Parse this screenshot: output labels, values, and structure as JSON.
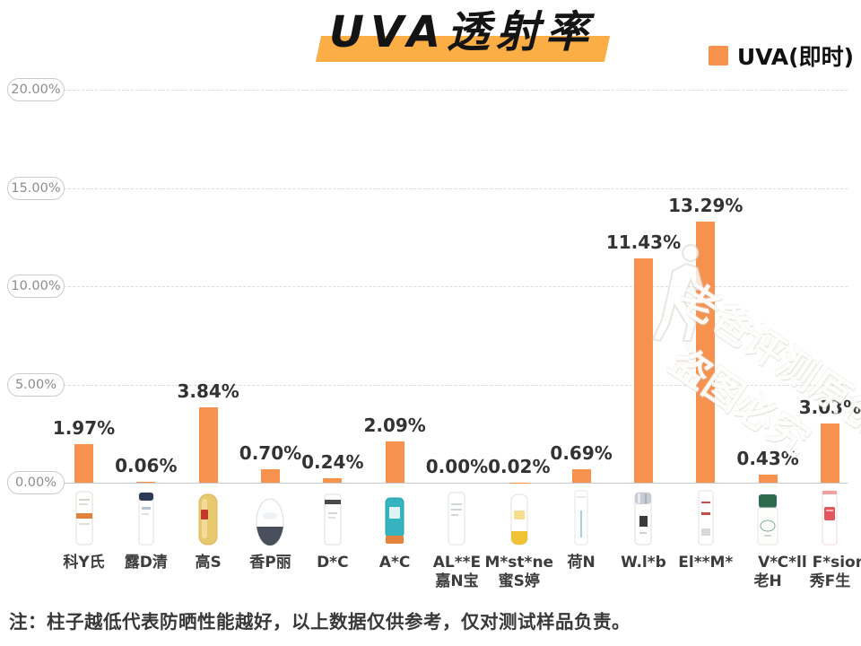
{
  "header": {
    "title": "UVA透射率",
    "title_highlight_color": "#FBAE45",
    "legend": {
      "label": "UVA(即时)",
      "swatch_color": "#F6914E"
    }
  },
  "watermark": {
    "line1": "老爸评测原创",
    "line2": "盗图必究"
  },
  "note": "注：柱子越低代表防晒性能越好，以上数据仅供参考，仅对测试样品负责。",
  "chart_data": {
    "type": "bar",
    "title": "UVA透射率",
    "legend_entries": [
      "UVA(即时)"
    ],
    "legend_position": "top-right",
    "grid": "horizontal-dashed",
    "bar_color": "#F6914E",
    "ylim": [
      0,
      20
    ],
    "yticks": [
      {
        "label": "20.00%",
        "value": 20
      },
      {
        "label": "15.00%",
        "value": 15
      },
      {
        "label": "10.00%",
        "value": 10
      },
      {
        "label": "5.00%",
        "value": 5
      },
      {
        "label": "0.00%",
        "value": 0
      }
    ],
    "categories": [
      "科Y氏",
      "露D清",
      "高S",
      "香P丽",
      "D*C",
      "A*C",
      "AL**E 嘉N宝",
      "M*st*ne 蜜S婷",
      "荷N",
      "W.l*b",
      "El**M*",
      "V* 老H",
      "C*ll F*sion C 秀F生"
    ],
    "values": [
      1.97,
      0.06,
      3.84,
      0.7,
      0.24,
      2.09,
      0.0,
      0.02,
      0.69,
      11.43,
      13.29,
      0.43,
      3.03
    ],
    "products": [
      {
        "label_lines": [
          "科Y氏"
        ],
        "value": 1.97,
        "value_label": "1.97%",
        "icon": "tube-orange-band-photo",
        "style": "tube_band",
        "colors": [
          "#ffffff",
          "#E0813C",
          "#E2DCD2"
        ]
      },
      {
        "label_lines": [
          "露D清"
        ],
        "value": 0.06,
        "value_label": "0.06%",
        "icon": "tube-dark-cap-photo",
        "style": "tube_capdark",
        "colors": [
          "#ffffff",
          "#2D3A55",
          "#dfe2e8"
        ]
      },
      {
        "label_lines": [
          "高S"
        ],
        "value": 3.84,
        "value_label": "3.84%",
        "icon": "gold-bottle-photo",
        "style": "bottle_gold",
        "colors": [
          "#E9C96F",
          "#C0392B",
          "#D9B45A"
        ]
      },
      {
        "label_lines": [
          "香P丽"
        ],
        "value": 0.7,
        "value_label": "0.70%",
        "icon": "egg-rollon-photo",
        "style": "egg",
        "colors": [
          "#ffffff",
          "#49505C",
          "#d8dce0"
        ]
      },
      {
        "label_lines": [
          "D*C"
        ],
        "value": 0.24,
        "value_label": "0.24%",
        "icon": "rect-bottle-photo",
        "style": "bottle_rect",
        "colors": [
          "#ffffff",
          "#4a4a4a",
          "#dddddd"
        ]
      },
      {
        "label_lines": [
          "A*C"
        ],
        "value": 2.09,
        "value_label": "2.09%",
        "icon": "teal-tube-photo",
        "style": "tube_teal",
        "colors": [
          "#35B3BE",
          "#E2823C",
          "#2AA3AE"
        ]
      },
      {
        "label_lines": [
          "AL**E",
          "嘉N宝"
        ],
        "value": 0.0,
        "value_label": "0.00%",
        "icon": "white-tube-photo",
        "style": "tube_white",
        "colors": [
          "#ffffff",
          "#cfd6da",
          "#e2e2e2"
        ]
      },
      {
        "label_lines": [
          "M*st*ne",
          "蜜S婷"
        ],
        "value": 0.02,
        "value_label": "0.02%",
        "icon": "yellow-bottom-bottle-photo",
        "style": "bottle_yellow",
        "colors": [
          "#ffffff",
          "#F1C233",
          "#e4e0d2"
        ]
      },
      {
        "label_lines": [
          "荷N"
        ],
        "value": 0.69,
        "value_label": "0.69%",
        "icon": "slim-tube-photo",
        "style": "tube_slim",
        "colors": [
          "#ffffff",
          "#A9CFE8",
          "#e0e6ea"
        ]
      },
      {
        "label_lines": [
          "W.l*b"
        ],
        "value": 11.43,
        "value_label": "11.43%",
        "icon": "chrome-cap-bottle-photo",
        "style": "cyl_chrome",
        "colors": [
          "#ffffff",
          "#C7CBD3",
          "#3a3a3a"
        ]
      },
      {
        "label_lines": [
          "El**M*"
        ],
        "value": 13.29,
        "value_label": "13.29%",
        "icon": "red-text-tube-photo",
        "style": "tube_red",
        "colors": [
          "#ffffff",
          "#C84B4B",
          "#e8dede"
        ]
      },
      {
        "label_lines": [
          "V*",
          "老H"
        ],
        "value": 0.43,
        "value_label": "0.43%",
        "icon": "green-cap-stick-photo",
        "style": "stick_green",
        "colors": [
          "#FDFDFB",
          "#2E6B4D",
          "#7FA98F"
        ]
      },
      {
        "label_lines": [
          "C*ll F*sion C",
          "秀F生"
        ],
        "value": 3.03,
        "value_label": "3.03%",
        "icon": "red-label-tube-photo",
        "style": "tube_redlabel",
        "colors": [
          "#ffffff",
          "#E4565E",
          "#F0A0A0"
        ]
      }
    ]
  }
}
